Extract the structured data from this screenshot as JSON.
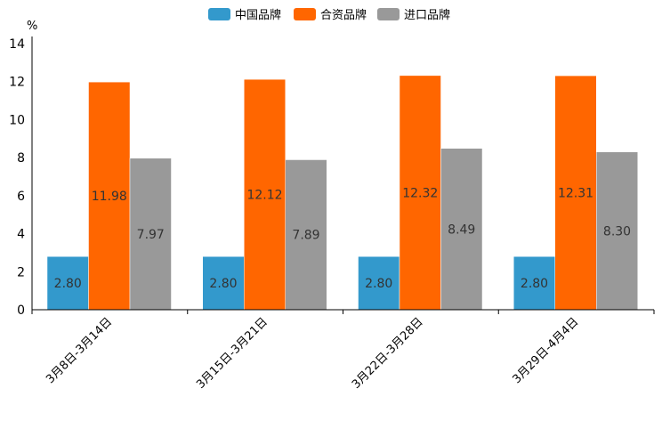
{
  "chart_data": {
    "type": "bar",
    "title": "",
    "ylabel": "%",
    "xlabel": "",
    "ylim": [
      0,
      14
    ],
    "yticks": [
      0,
      2,
      4,
      6,
      8,
      10,
      12,
      14
    ],
    "grid": false,
    "legend_position": "top-center",
    "categories": [
      "3月8日-3月14日",
      "3月15日-3月21日",
      "3月22日-3月28日",
      "3月29日-4月4日"
    ],
    "series": [
      {
        "name": "中国品牌",
        "color": "#3399cc",
        "values": [
          2.8,
          2.8,
          2.8,
          2.8
        ],
        "labels": [
          "2.80",
          "2.80",
          "2.80",
          "2.80"
        ]
      },
      {
        "name": "合资品牌",
        "color": "#ff6600",
        "values": [
          11.98,
          12.12,
          12.32,
          12.31
        ],
        "labels": [
          "11.98",
          "12.12",
          "12.32",
          "12.31"
        ]
      },
      {
        "name": "进口品牌",
        "color": "#999999",
        "values": [
          7.97,
          7.89,
          8.49,
          8.3
        ],
        "labels": [
          "7.97",
          "7.89",
          "8.49",
          "8.30"
        ]
      }
    ]
  }
}
